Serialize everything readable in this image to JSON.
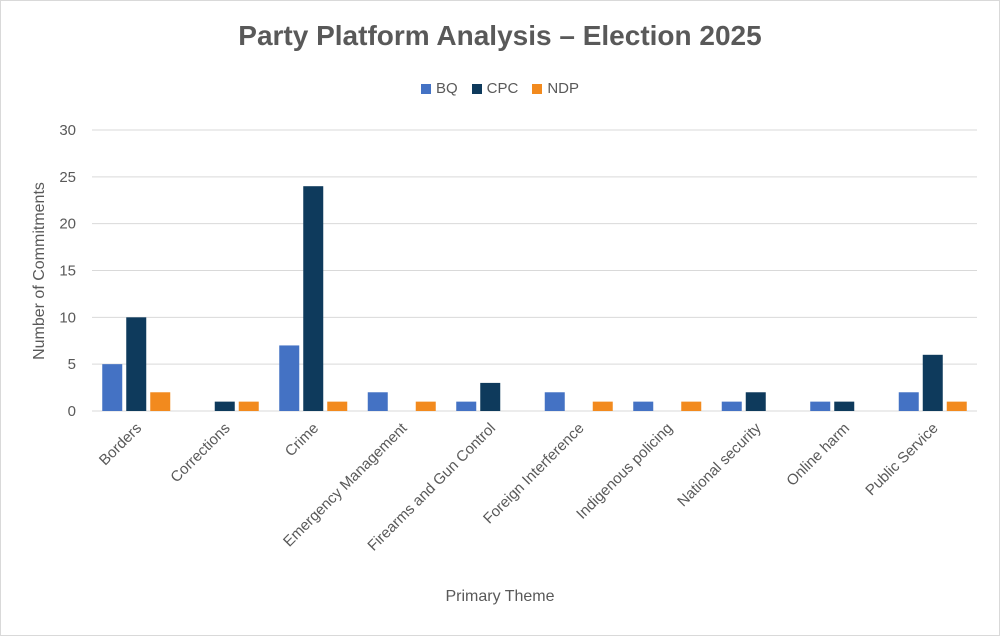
{
  "chart_data": {
    "type": "bar",
    "title": "Party Platform Analysis – Election 2025",
    "xlabel": "Primary Theme",
    "ylabel": "Number of Commitments",
    "ylim": [
      0,
      30
    ],
    "yticks": [
      0,
      5,
      10,
      15,
      20,
      25,
      30
    ],
    "grid": true,
    "legend_position": "top",
    "categories": [
      "Borders",
      "Corrections",
      "Crime",
      "Emergency Management",
      "Firearms and Gun Control",
      "Foreign Interference",
      "Indigenous policing",
      "National security",
      "Online harm",
      "Public Service"
    ],
    "series": [
      {
        "name": "BQ",
        "color": "#4472c4",
        "values": [
          5,
          0,
          7,
          2,
          1,
          2,
          1,
          1,
          1,
          2
        ]
      },
      {
        "name": "CPC",
        "color": "#0e3a5c",
        "values": [
          10,
          1,
          24,
          0,
          3,
          0,
          0,
          2,
          1,
          6
        ]
      },
      {
        "name": "NDP",
        "color": "#f28a1e",
        "values": [
          2,
          1,
          1,
          1,
          0,
          1,
          1,
          0,
          0,
          1
        ]
      }
    ]
  }
}
